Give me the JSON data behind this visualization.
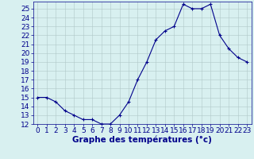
{
  "x": [
    0,
    1,
    2,
    3,
    4,
    5,
    6,
    7,
    8,
    9,
    10,
    11,
    12,
    13,
    14,
    15,
    16,
    17,
    18,
    19,
    20,
    21,
    22,
    23
  ],
  "y": [
    15,
    15,
    14.5,
    13.5,
    13,
    12.5,
    12.5,
    12,
    12,
    13,
    14.5,
    17,
    19,
    21.5,
    22.5,
    23,
    25.5,
    25,
    25,
    25.5,
    22,
    20.5,
    19.5,
    19
  ],
  "line_color": "#00008b",
  "marker": "+",
  "marker_size": 3,
  "marker_color": "#00008b",
  "bg_color": "#d8f0f0",
  "grid_color": "#b0c8c8",
  "xlabel": "Graphe des températures (°c)",
  "xlabel_color": "#00008b",
  "xlim": [
    -0.5,
    23.5
  ],
  "ylim": [
    12,
    25.8
  ],
  "yticks": [
    12,
    13,
    14,
    15,
    16,
    17,
    18,
    19,
    20,
    21,
    22,
    23,
    24,
    25
  ],
  "xticks": [
    0,
    1,
    2,
    3,
    4,
    5,
    6,
    7,
    8,
    9,
    10,
    11,
    12,
    13,
    14,
    15,
    16,
    17,
    18,
    19,
    20,
    21,
    22,
    23
  ],
  "tick_color": "#00008b",
  "axis_color": "#00008b",
  "font_size": 6.5
}
